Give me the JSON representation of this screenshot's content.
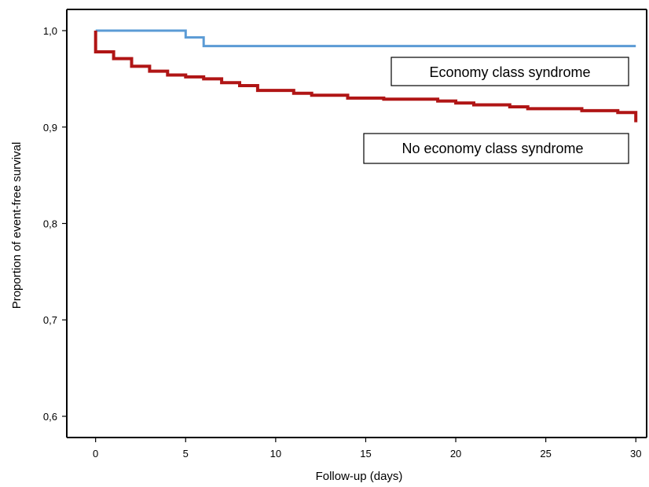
{
  "chart_data": {
    "type": "line",
    "step": true,
    "xlabel": "Follow-up (days)",
    "ylabel": "Proportion of event-free survival",
    "xlim": [
      -1.6,
      30.6
    ],
    "ylim": [
      0.578,
      1.022
    ],
    "xticks": [
      0,
      5,
      10,
      15,
      20,
      25,
      30
    ],
    "xtick_labels": [
      "0",
      "5",
      "10",
      "15",
      "20",
      "25",
      "30"
    ],
    "yticks": [
      0.6,
      0.7,
      0.8,
      0.9,
      1.0
    ],
    "ytick_labels": [
      "0,6",
      "0,7",
      "0,8",
      "0,9",
      "1,0"
    ],
    "grid": false,
    "series": [
      {
        "name": "Economy class syndrome",
        "color": "#5b9bd5",
        "points": [
          [
            0,
            1.0
          ],
          [
            5,
            1.0
          ],
          [
            5,
            0.993
          ],
          [
            6,
            0.993
          ],
          [
            6,
            0.984
          ],
          [
            30,
            0.984
          ]
        ]
      },
      {
        "name": "No economy class syndrome",
        "color": "#b01515",
        "points": [
          [
            0,
            1.0
          ],
          [
            0,
            0.978
          ],
          [
            1,
            0.978
          ],
          [
            1,
            0.971
          ],
          [
            2,
            0.971
          ],
          [
            2,
            0.963
          ],
          [
            3,
            0.963
          ],
          [
            3,
            0.958
          ],
          [
            4,
            0.958
          ],
          [
            4,
            0.954
          ],
          [
            5,
            0.954
          ],
          [
            5,
            0.952
          ],
          [
            6,
            0.952
          ],
          [
            6,
            0.95
          ],
          [
            7,
            0.95
          ],
          [
            7,
            0.946
          ],
          [
            8,
            0.946
          ],
          [
            8,
            0.943
          ],
          [
            9,
            0.943
          ],
          [
            9,
            0.938
          ],
          [
            11,
            0.938
          ],
          [
            11,
            0.935
          ],
          [
            12,
            0.935
          ],
          [
            12,
            0.933
          ],
          [
            14,
            0.933
          ],
          [
            14,
            0.93
          ],
          [
            16,
            0.93
          ],
          [
            16,
            0.929
          ],
          [
            19,
            0.929
          ],
          [
            19,
            0.927
          ],
          [
            20,
            0.927
          ],
          [
            20,
            0.925
          ],
          [
            21,
            0.925
          ],
          [
            21,
            0.923
          ],
          [
            23,
            0.923
          ],
          [
            23,
            0.921
          ],
          [
            24,
            0.921
          ],
          [
            24,
            0.919
          ],
          [
            27,
            0.919
          ],
          [
            27,
            0.917
          ],
          [
            29,
            0.917
          ],
          [
            29,
            0.915
          ],
          [
            30,
            0.915
          ],
          [
            30,
            0.905
          ]
        ]
      }
    ],
    "legend": [
      {
        "label": "Economy class syndrome",
        "series": 0
      },
      {
        "label": "No economy class syndrome",
        "series": 1
      }
    ]
  }
}
